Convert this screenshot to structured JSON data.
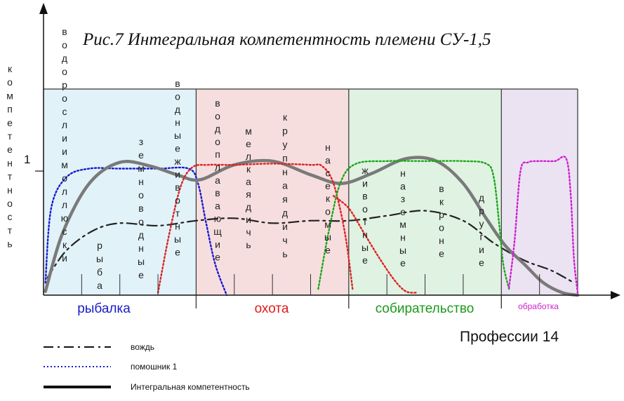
{
  "chart_data": {
    "type": "line",
    "title": "Рис.7   Интегральная компетентность племени   СУ-1,5",
    "ylabel": "компетентность",
    "xlabel": "Профессии 14",
    "ytick_label": "1",
    "ylim": [
      0,
      1.7
    ],
    "xlim": [
      0,
      14
    ],
    "grid": false,
    "legend_position": "bottom-left",
    "categories": [
      {
        "label": "рыбалка",
        "color": "#1a1ac8",
        "bg": "#e1f2f8"
      },
      {
        "label": "охота",
        "color": "#e01a1a",
        "bg": "#f6dede"
      },
      {
        "label": "собирательство",
        "color": "#1a9a1a",
        "bg": "#e0f2e2"
      },
      {
        "label": "обработка",
        "color": "#cc22cc",
        "bg": "#ebe3f2"
      }
    ],
    "category_bounds": [
      0,
      4,
      8,
      12,
      14
    ],
    "professions": [
      "водоросли и моллюски",
      "рыба",
      "земноводные",
      "водные животные",
      "водоплавающие",
      "мелкая дичь",
      "крупная дичь",
      "насекомые",
      "животные",
      "наземные",
      "в кроне",
      "другие"
    ],
    "series": [
      {
        "name": "вождь",
        "style": "dashdot",
        "color": "#222222",
        "x": [
          0.1,
          0.6,
          1.3,
          2,
          3,
          4,
          5,
          6,
          7,
          8,
          9,
          10,
          11,
          11.8,
          12.6,
          13.3,
          13.9
        ],
        "y": [
          0.14,
          0.36,
          0.52,
          0.58,
          0.56,
          0.6,
          0.62,
          0.58,
          0.6,
          0.6,
          0.64,
          0.68,
          0.6,
          0.42,
          0.28,
          0.2,
          0.1
        ]
      },
      {
        "name": "помошник 1",
        "style": "dotted",
        "color": "#1a1ad0",
        "x": [
          0.05,
          0.2,
          0.6,
          1.2,
          2,
          3,
          3.8,
          4.05,
          4.25,
          4.5,
          4.8
        ],
        "y": [
          0.1,
          0.7,
          0.95,
          1.02,
          1.02,
          1.02,
          1.02,
          0.9,
          0.6,
          0.25,
          0
        ]
      },
      {
        "name": "Интегральная компетентность",
        "style": "solid",
        "color": "#7a7a7a",
        "x": [
          0.05,
          0.5,
          1.2,
          2,
          2.8,
          3.5,
          4.1,
          5,
          6,
          7,
          7.8,
          8.6,
          9.5,
          10.3,
          11,
          11.6,
          12.1,
          12.6,
          13.1,
          13.6,
          14
        ],
        "y": [
          0.03,
          0.5,
          0.9,
          1.07,
          1.04,
          0.97,
          0.93,
          1.05,
          1.08,
          0.97,
          0.9,
          0.98,
          1.1,
          1.08,
          0.9,
          0.62,
          0.4,
          0.25,
          0.1,
          0.02,
          0
        ]
      },
      {
        "name": "",
        "style": "dotted",
        "color": "#dd2222",
        "x": [
          3.0,
          3.3,
          3.6,
          3.9,
          4.3,
          5,
          6,
          7,
          7.3,
          7.6,
          7.9,
          8.1
        ],
        "y": [
          0.02,
          0.5,
          0.88,
          1.03,
          1.05,
          1.05,
          1.06,
          1.05,
          1.04,
          0.9,
          0.5,
          0.05
        ]
      },
      {
        "name": "",
        "style": "dotted",
        "color": "#dd2222",
        "x": [
          7.6,
          8.0,
          8.4,
          8.8,
          9.2,
          9.5,
          9.8
        ],
        "y": [
          0.8,
          0.7,
          0.5,
          0.3,
          0.12,
          0.03,
          0.02
        ]
      },
      {
        "name": "",
        "style": "dotted",
        "color": "#1aa81a",
        "x": [
          7.2,
          7.5,
          7.8,
          8.2,
          9,
          10,
          11,
          11.6,
          11.8,
          11.95,
          12.05,
          12.2
        ],
        "y": [
          0.05,
          0.55,
          0.92,
          1.06,
          1.08,
          1.08,
          1.08,
          1.06,
          0.95,
          0.55,
          0.25,
          0.05
        ]
      },
      {
        "name": "",
        "style": "dotted",
        "color": "#d020d0",
        "x": [
          12.2,
          12.35,
          12.5,
          12.7,
          13,
          13.4,
          13.7,
          13.82,
          13.9,
          14.0
        ],
        "y": [
          0.06,
          0.45,
          1.0,
          1.07,
          1.08,
          1.08,
          1.1,
          0.8,
          0.3,
          0.02
        ]
      }
    ],
    "legend": [
      {
        "label": "вождь",
        "style": "dashdot"
      },
      {
        "label": "помошник 1",
        "style": "dotted"
      },
      {
        "label": "Интегральная  компетентность",
        "style": "solid"
      }
    ]
  }
}
